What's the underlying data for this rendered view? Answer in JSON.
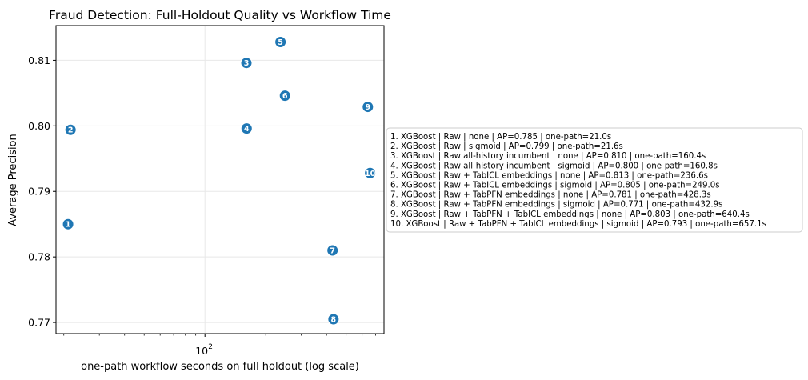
{
  "chart_data": {
    "type": "scatter",
    "title": "Fraud Detection: Full-Holdout Quality vs Workflow Time",
    "xlabel": "one-path workflow seconds on full holdout (log scale)",
    "ylabel": "Average Precision",
    "xscale": "log",
    "xlim": [
      18.3,
      770
    ],
    "ylim": [
      0.7683,
      0.8153
    ],
    "xticks": [
      {
        "value": 100,
        "label": "10",
        "exp": "2"
      }
    ],
    "yticks": [
      0.77,
      0.78,
      0.79,
      0.8,
      0.81
    ],
    "ytick_labels": [
      "0.77",
      "0.78",
      "0.79",
      "0.80",
      "0.81"
    ],
    "grid": true,
    "legend_placement": "right",
    "marker_color": "#1f77b4",
    "points": [
      {
        "id": "1",
        "x": 21.0,
        "y": 0.785,
        "label": "1. XGBoost | Raw | none | AP=0.785 | one-path=21.0s"
      },
      {
        "id": "2",
        "x": 21.6,
        "y": 0.7994,
        "label": "2. XGBoost | Raw | sigmoid | AP=0.799 | one-path=21.6s"
      },
      {
        "id": "3",
        "x": 160.4,
        "y": 0.8096,
        "label": "3. XGBoost | Raw all-history incumbent | none | AP=0.810 | one-path=160.4s"
      },
      {
        "id": "4",
        "x": 160.8,
        "y": 0.7996,
        "label": "4. XGBoost | Raw all-history incumbent | sigmoid | AP=0.800 | one-path=160.8s"
      },
      {
        "id": "5",
        "x": 236.6,
        "y": 0.8128,
        "label": "5. XGBoost | Raw + TabICL embeddings | none | AP=0.813 | one-path=236.6s"
      },
      {
        "id": "6",
        "x": 249.0,
        "y": 0.8046,
        "label": "6. XGBoost | Raw + TabICL embeddings | sigmoid | AP=0.805 | one-path=249.0s"
      },
      {
        "id": "7",
        "x": 428.3,
        "y": 0.781,
        "label": "7. XGBoost | Raw + TabPFN embeddings | none | AP=0.781 | one-path=428.3s"
      },
      {
        "id": "8",
        "x": 432.9,
        "y": 0.7705,
        "label": "8. XGBoost | Raw + TabPFN embeddings | sigmoid | AP=0.771 | one-path=432.9s"
      },
      {
        "id": "9",
        "x": 640.4,
        "y": 0.8029,
        "label": "9. XGBoost | Raw + TabPFN + TabICL embeddings | none | AP=0.803 | one-path=640.4s"
      },
      {
        "id": "10",
        "x": 657.1,
        "y": 0.7928,
        "label": "10. XGBoost | Raw + TabPFN + TabICL embeddings | sigmoid | AP=0.793 | one-path=657.1s"
      }
    ]
  }
}
